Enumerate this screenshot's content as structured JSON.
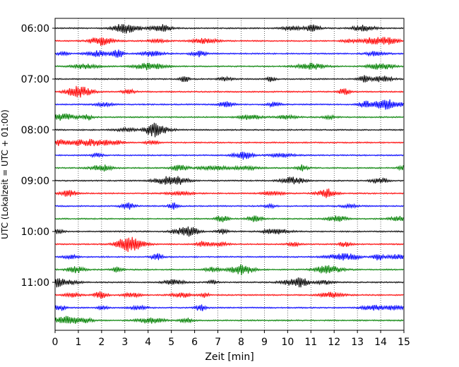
{
  "chart_data": {
    "type": "line",
    "title": "",
    "xlabel": "Zeit  [min]",
    "ylabel": "UTC (Lokalzeit = UTC + 01:00)",
    "xlim": [
      0,
      15
    ],
    "xticks": [
      "0",
      "1",
      "2",
      "3",
      "4",
      "5",
      "6",
      "7",
      "8",
      "9",
      "10",
      "11",
      "12",
      "13",
      "14",
      "15"
    ],
    "ytick_labels": [
      "06:00",
      "07:00",
      "08:00",
      "09:00",
      "10:00",
      "11:00"
    ],
    "grid": "vertical dotted lines at each minute",
    "trace_interval_minutes": 15,
    "trace_colors": [
      "#000000",
      "#ff0000",
      "#0000ff",
      "#008000"
    ],
    "traces": [
      {
        "start": "06:00",
        "color": "#000000"
      },
      {
        "start": "06:15",
        "color": "#ff0000"
      },
      {
        "start": "06:30",
        "color": "#0000ff"
      },
      {
        "start": "06:45",
        "color": "#008000"
      },
      {
        "start": "07:00",
        "color": "#000000"
      },
      {
        "start": "07:15",
        "color": "#ff0000"
      },
      {
        "start": "07:30",
        "color": "#0000ff"
      },
      {
        "start": "07:45",
        "color": "#008000"
      },
      {
        "start": "08:00",
        "color": "#000000"
      },
      {
        "start": "08:15",
        "color": "#ff0000"
      },
      {
        "start": "08:30",
        "color": "#0000ff"
      },
      {
        "start": "08:45",
        "color": "#008000"
      },
      {
        "start": "09:00",
        "color": "#000000"
      },
      {
        "start": "09:15",
        "color": "#ff0000"
      },
      {
        "start": "09:30",
        "color": "#0000ff"
      },
      {
        "start": "09:45",
        "color": "#008000"
      },
      {
        "start": "10:00",
        "color": "#000000"
      },
      {
        "start": "10:15",
        "color": "#ff0000"
      },
      {
        "start": "10:30",
        "color": "#0000ff"
      },
      {
        "start": "10:45",
        "color": "#008000"
      },
      {
        "start": "11:00",
        "color": "#000000"
      },
      {
        "start": "11:15",
        "color": "#ff0000"
      },
      {
        "start": "11:30",
        "color": "#0000ff"
      },
      {
        "start": "11:45",
        "color": "#008000"
      }
    ]
  }
}
